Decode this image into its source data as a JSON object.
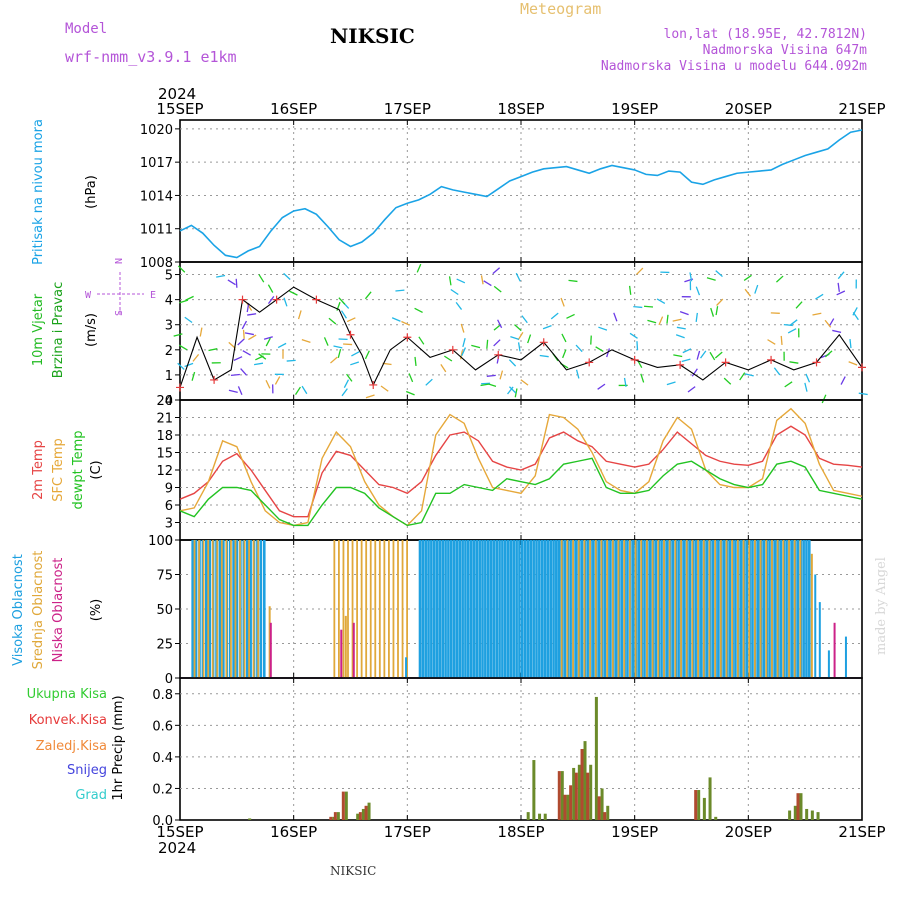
{
  "header": {
    "model_label": "Model",
    "model_name": "wrf-nmm_v3.9.1  e1km",
    "title": "NIKSIC",
    "meteogram_label": "Meteogram",
    "lonlat": "lon,lat (18.95E, 42.7812N)",
    "elevation": "Nadmorska Visina 647m",
    "model_elevation": "Nadmorska Visina u modelu 644.092m",
    "footer_title": "NIKSIC",
    "watermark": "made by Angel"
  },
  "colors": {
    "pressure": "#1aa3e6",
    "wind_label": "#22bb22",
    "wind_axis": "#1aa31a",
    "temp2m": "#e64545",
    "sfc": "#e6a83a",
    "dewpt": "#22c322",
    "cloud_high": "#1ea0e0",
    "cloud_mid": "#e0a83a",
    "cloud_low": "#cc2288",
    "rain_total": "#33cc33",
    "rain_conv": "#e63a3a",
    "rain_strat": "#f08a3a",
    "snow": "#4444dd",
    "hail": "#33cccc",
    "header_purple": "#b455d8",
    "meteogram_gold": "#e6c070"
  },
  "chart_data": [
    {
      "type": "line",
      "panel": "pressure",
      "ylabel": "Pritisak na nivou mora",
      "yunit": "(hPa)",
      "yticks": [
        1008,
        1011,
        1014,
        1017,
        1020
      ],
      "ylim": [
        1008,
        1020.8
      ],
      "xlim": [
        0,
        6
      ],
      "xticks": [
        "15SEP",
        "16SEP",
        "17SEP",
        "18SEP",
        "19SEP",
        "20SEP",
        "21SEP"
      ],
      "year": "2024",
      "grid": true,
      "series": [
        {
          "name": "Pritisak na nivou mora",
          "x": [
            0,
            0.1,
            0.2,
            0.3,
            0.4,
            0.5,
            0.6,
            0.7,
            0.8,
            0.9,
            1.0,
            1.1,
            1.2,
            1.3,
            1.4,
            1.5,
            1.6,
            1.7,
            1.8,
            1.9,
            2.0,
            2.1,
            2.2,
            2.3,
            2.4,
            2.5,
            2.6,
            2.7,
            2.8,
            2.9,
            3.0,
            3.1,
            3.2,
            3.3,
            3.4,
            3.5,
            3.6,
            3.7,
            3.8,
            3.9,
            4.0,
            4.1,
            4.2,
            4.3,
            4.4,
            4.5,
            4.6,
            4.7,
            4.8,
            4.9,
            5.0,
            5.1,
            5.2,
            5.3,
            5.4,
            5.5,
            5.6,
            5.7,
            5.8,
            5.9,
            6.0
          ],
          "values": [
            1010.8,
            1011.3,
            1010.6,
            1009.5,
            1008.6,
            1008.4,
            1009.0,
            1009.4,
            1010.8,
            1012.0,
            1012.6,
            1012.8,
            1012.3,
            1011.2,
            1010.0,
            1009.4,
            1009.8,
            1010.6,
            1011.8,
            1012.9,
            1013.3,
            1013.6,
            1014.1,
            1014.8,
            1014.5,
            1014.3,
            1014.1,
            1013.9,
            1014.6,
            1015.3,
            1015.7,
            1016.1,
            1016.4,
            1016.5,
            1016.6,
            1016.3,
            1016.0,
            1016.4,
            1016.7,
            1016.5,
            1016.3,
            1015.9,
            1015.8,
            1016.2,
            1016.1,
            1015.2,
            1015.0,
            1015.4,
            1015.7,
            1016.0,
            1016.1,
            1016.2,
            1016.3,
            1016.8,
            1017.2,
            1017.6,
            1017.9,
            1018.2,
            1019.0,
            1019.7,
            1019.9
          ]
        }
      ]
    },
    {
      "type": "line",
      "panel": "wind",
      "ylabel": "10m Vjetar",
      "ylabel2": "Brzina i Pravac",
      "yunit": "(m/s)",
      "compass": [
        "N",
        "W",
        "E",
        "S"
      ],
      "yticks": [
        0,
        1,
        2,
        3,
        4,
        5
      ],
      "ylim": [
        0,
        5.5
      ],
      "xlim": [
        0,
        6
      ],
      "grid": true,
      "series": [
        {
          "name": "10m Vjetar",
          "x": [
            0,
            0.15,
            0.3,
            0.45,
            0.55,
            0.7,
            0.85,
            1.0,
            1.2,
            1.4,
            1.5,
            1.6,
            1.7,
            1.85,
            2.0,
            2.2,
            2.4,
            2.6,
            2.8,
            3.0,
            3.2,
            3.4,
            3.6,
            3.8,
            4.0,
            4.2,
            4.4,
            4.6,
            4.8,
            5.0,
            5.2,
            5.4,
            5.6,
            5.8,
            6.0
          ],
          "values": [
            0.5,
            2.5,
            0.8,
            1.2,
            4.0,
            3.5,
            4.0,
            4.5,
            4.0,
            3.6,
            2.6,
            1.8,
            0.6,
            2.0,
            2.5,
            1.7,
            2.0,
            1.2,
            1.8,
            1.6,
            2.3,
            1.2,
            1.5,
            2.0,
            1.6,
            1.3,
            1.4,
            0.8,
            1.5,
            1.2,
            1.6,
            1.2,
            1.5,
            2.6,
            1.3
          ]
        }
      ]
    },
    {
      "type": "line",
      "panel": "temperature",
      "yunit": "(C)",
      "yticks": [
        0,
        3,
        6,
        9,
        12,
        15,
        18,
        21,
        24
      ],
      "ylim": [
        0,
        24
      ],
      "xlim": [
        0,
        6
      ],
      "grid": true,
      "x": [
        0,
        0.125,
        0.25,
        0.375,
        0.5,
        0.625,
        0.75,
        0.875,
        1.0,
        1.125,
        1.25,
        1.375,
        1.5,
        1.625,
        1.75,
        1.875,
        2.0,
        2.125,
        2.25,
        2.375,
        2.5,
        2.625,
        2.75,
        2.875,
        3.0,
        3.125,
        3.25,
        3.375,
        3.5,
        3.625,
        3.75,
        3.875,
        4.0,
        4.125,
        4.25,
        4.375,
        4.5,
        4.625,
        4.75,
        4.875,
        5.0,
        5.125,
        5.25,
        5.375,
        5.5,
        5.625,
        5.75,
        5.875,
        6.0
      ],
      "series": [
        {
          "name": "2m Temp",
          "values": [
            7.0,
            8.0,
            10.0,
            13.5,
            14.8,
            12.0,
            8.5,
            5.0,
            4.0,
            4.0,
            11.5,
            15.2,
            14.5,
            12.0,
            9.5,
            9.0,
            8.0,
            10.0,
            14.5,
            18.0,
            18.5,
            17.0,
            13.5,
            12.5,
            12.0,
            13.0,
            17.5,
            18.5,
            17.0,
            16.0,
            13.5,
            13.0,
            12.5,
            13.0,
            15.5,
            18.5,
            16.5,
            14.5,
            13.5,
            13.0,
            12.8,
            13.5,
            18.0,
            19.5,
            18.0,
            14.0,
            13.0,
            12.8,
            12.5
          ]
        },
        {
          "name": "SFC Temp",
          "values": [
            5.0,
            5.5,
            10.0,
            17.0,
            16.0,
            10.0,
            5.0,
            3.0,
            2.5,
            3.0,
            14.0,
            18.5,
            16.0,
            10.0,
            6.0,
            4.0,
            2.5,
            5.0,
            18.0,
            21.5,
            20.0,
            14.0,
            9.0,
            8.5,
            8.0,
            11.0,
            21.5,
            21.0,
            19.0,
            15.0,
            10.0,
            8.5,
            8.0,
            10.0,
            17.0,
            21.0,
            19.0,
            12.0,
            9.5,
            9.0,
            9.0,
            10.5,
            20.5,
            22.5,
            20.0,
            13.0,
            8.5,
            8.0,
            7.5
          ]
        },
        {
          "name": "dewpt Temp",
          "values": [
            5.0,
            4.0,
            7.0,
            9.0,
            9.0,
            8.5,
            6.0,
            3.5,
            2.5,
            2.5,
            6.0,
            9.0,
            9.0,
            8.0,
            5.5,
            4.0,
            2.5,
            3.0,
            8.0,
            8.0,
            9.5,
            9.0,
            8.5,
            10.5,
            10.0,
            9.5,
            10.5,
            13.0,
            13.5,
            14.0,
            9.0,
            8.0,
            8.0,
            8.5,
            11.0,
            13.0,
            13.5,
            12.0,
            10.5,
            9.5,
            9.0,
            9.5,
            13.0,
            13.5,
            12.5,
            8.5,
            8.0,
            7.5,
            7.0
          ]
        }
      ],
      "labels": [
        "2m Temp",
        "SFC Temp",
        "dewpt Temp"
      ]
    },
    {
      "type": "bar",
      "panel": "clouds",
      "yunit": "(%)",
      "yticks": [
        0,
        25,
        50,
        75,
        100
      ],
      "ylim": [
        0,
        100
      ],
      "xlim": [
        0,
        6
      ],
      "grid": true,
      "labels": [
        "Visoka Oblacnost",
        "Srednja Oblacnost",
        "Niska Oblacnost"
      ],
      "blocks": [
        {
          "name": "high",
          "start": 0.1,
          "end": 0.75,
          "value": 100,
          "step": 0.03
        },
        {
          "name": "mid",
          "start": 0.12,
          "end": 0.72,
          "value": 100,
          "step": 0.04
        },
        {
          "name": "high",
          "start": 2.1,
          "end": 3.3,
          "value": 100,
          "step": 0.025
        },
        {
          "name": "mid",
          "start": 1.35,
          "end": 2.0,
          "value": 100,
          "step": 0.04
        },
        {
          "name": "high",
          "start": 3.3,
          "end": 5.55,
          "value": 100,
          "step": 0.025
        },
        {
          "name": "mid",
          "start": 3.35,
          "end": 5.45,
          "value": 100,
          "step": 0.05
        }
      ],
      "extras": [
        {
          "name": "mid",
          "x": 0.78,
          "value": 52
        },
        {
          "name": "low",
          "x": 0.79,
          "value": 40
        },
        {
          "name": "low",
          "x": 1.41,
          "value": 35
        },
        {
          "name": "mid",
          "x": 1.45,
          "value": 45
        },
        {
          "name": "low",
          "x": 1.52,
          "value": 40
        },
        {
          "name": "high",
          "x": 1.98,
          "value": 15
        },
        {
          "name": "high",
          "x": 5.58,
          "value": 75
        },
        {
          "name": "high",
          "x": 5.62,
          "value": 55
        },
        {
          "name": "mid",
          "x": 5.55,
          "value": 90
        },
        {
          "name": "low",
          "x": 5.75,
          "value": 40
        },
        {
          "name": "high",
          "x": 5.7,
          "value": 20
        },
        {
          "name": "high",
          "x": 5.85,
          "value": 30
        }
      ]
    },
    {
      "type": "bar",
      "panel": "precip",
      "ylabel": "1hr Precip (mm)",
      "yticks": [
        0.0,
        0.2,
        0.4,
        0.6,
        0.8
      ],
      "ylim": [
        0,
        0.9
      ],
      "xlim": [
        0,
        6
      ],
      "grid": true,
      "labels": [
        "Ukupna Kisa",
        "Konvek.Kisa",
        "Zaledj.Kisa",
        "Snijeg",
        "Grad"
      ],
      "bars": [
        {
          "x": 0.6,
          "total": 0.01,
          "conv": 0.0
        },
        {
          "x": 1.34,
          "total": 0.02,
          "conv": 0.02
        },
        {
          "x": 1.38,
          "total": 0.05,
          "conv": 0.05
        },
        {
          "x": 1.45,
          "total": 0.18,
          "conv": 0.18
        },
        {
          "x": 1.55,
          "total": 0.04,
          "conv": 0.0
        },
        {
          "x": 1.6,
          "total": 0.07,
          "conv": 0.05
        },
        {
          "x": 1.65,
          "total": 0.11,
          "conv": 0.09
        },
        {
          "x": 3.05,
          "total": 0.05,
          "conv": 0.0
        },
        {
          "x": 3.1,
          "total": 0.38,
          "conv": 0.0
        },
        {
          "x": 3.15,
          "total": 0.04,
          "conv": 0.0
        },
        {
          "x": 3.2,
          "total": 0.04,
          "conv": 0.0
        },
        {
          "x": 3.35,
          "total": 0.31,
          "conv": 0.31
        },
        {
          "x": 3.4,
          "total": 0.16,
          "conv": 0.16
        },
        {
          "x": 3.45,
          "total": 0.33,
          "conv": 0.22
        },
        {
          "x": 3.5,
          "total": 0.35,
          "conv": 0.3
        },
        {
          "x": 3.55,
          "total": 0.5,
          "conv": 0.45
        },
        {
          "x": 3.6,
          "total": 0.35,
          "conv": 0.3
        },
        {
          "x": 3.65,
          "total": 0.78,
          "conv": 0.0
        },
        {
          "x": 3.7,
          "total": 0.2,
          "conv": 0.15
        },
        {
          "x": 3.75,
          "total": 0.09,
          "conv": 0.05
        },
        {
          "x": 4.55,
          "total": 0.19,
          "conv": 0.19
        },
        {
          "x": 4.6,
          "total": 0.14,
          "conv": 0.0
        },
        {
          "x": 4.65,
          "total": 0.27,
          "conv": 0.0
        },
        {
          "x": 4.7,
          "total": 0.02,
          "conv": 0.0
        },
        {
          "x": 5.35,
          "total": 0.06,
          "conv": 0.0
        },
        {
          "x": 5.4,
          "total": 0.09,
          "conv": 0.0
        },
        {
          "x": 5.45,
          "total": 0.17,
          "conv": 0.17
        },
        {
          "x": 5.5,
          "total": 0.07,
          "conv": 0.0
        },
        {
          "x": 5.55,
          "total": 0.06,
          "conv": 0.0
        },
        {
          "x": 5.6,
          "total": 0.05,
          "conv": 0.0
        }
      ]
    }
  ]
}
